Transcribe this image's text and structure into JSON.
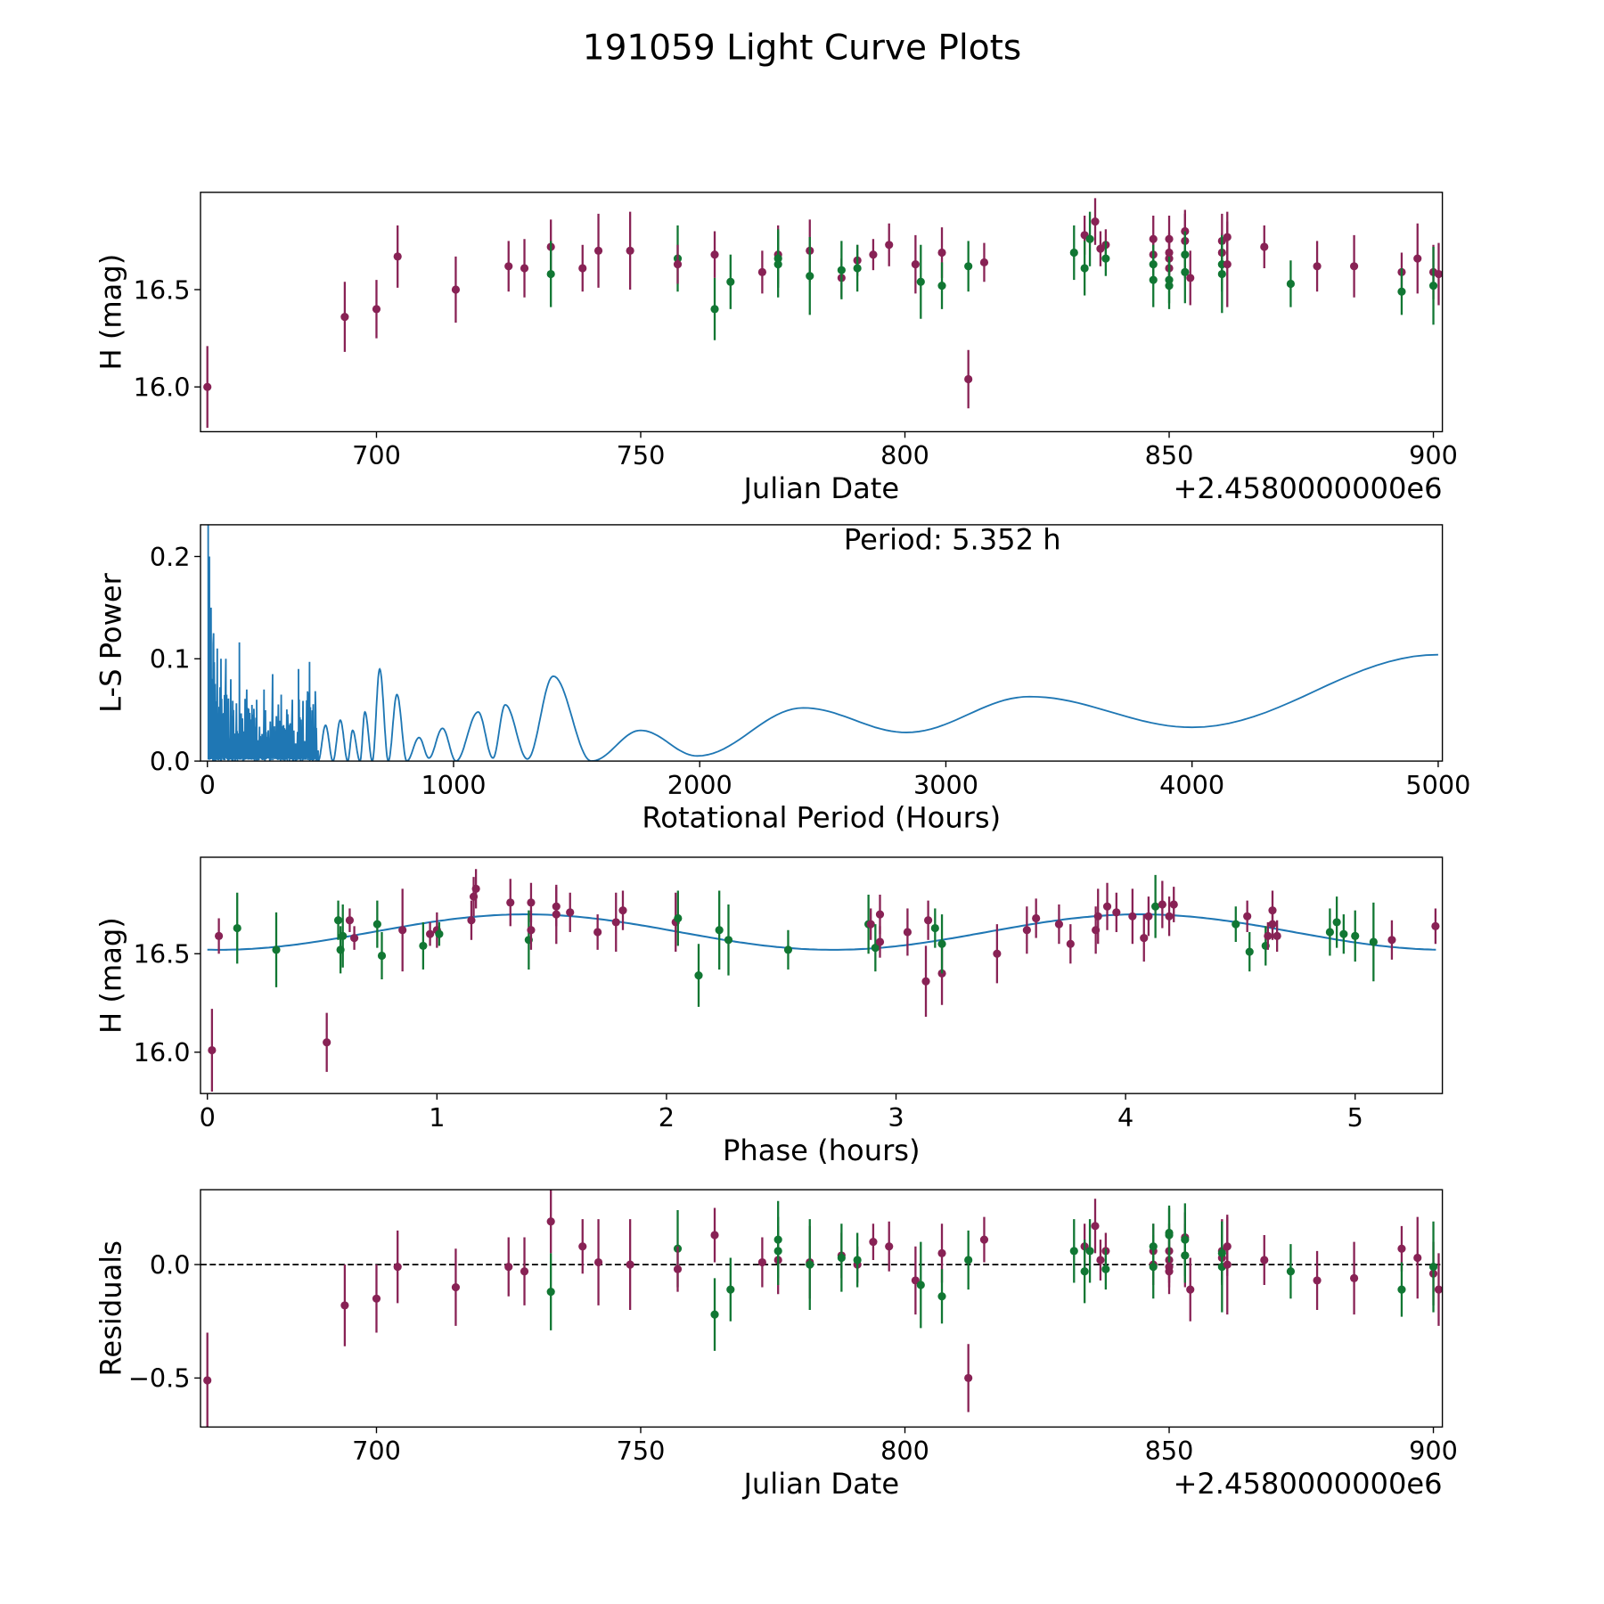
{
  "title": "191059 Light Curve Plots",
  "colors": {
    "maroon": "#882255",
    "green": "#117733",
    "line": "#1f77b4"
  },
  "chart_data": [
    {
      "type": "scatter",
      "name": "light-curve",
      "xlabel": "Julian Date",
      "ylabel": "H (mag)",
      "offset_label": "+2.4580000000e6",
      "xlim": [
        666.7,
        901.7
      ],
      "ylim": [
        15.77,
        17.0
      ],
      "xticks": [
        700,
        750,
        800,
        850,
        900
      ],
      "xtick_labels": [
        "700",
        "750",
        "800",
        "850",
        "900"
      ],
      "yticks": [
        16.0,
        16.5
      ],
      "ytick_labels": [
        "16.0",
        "16.5"
      ],
      "point_fields": [
        "jd_offset",
        "H",
        "err",
        "color",
        "residual"
      ],
      "points": [
        [
          668,
          16.0,
          0.21,
          "m",
          -0.51
        ],
        [
          694,
          16.36,
          0.18,
          "m",
          -0.18
        ],
        [
          700,
          16.4,
          0.15,
          "m",
          -0.15
        ],
        [
          704,
          16.67,
          0.16,
          "m",
          -0.01
        ],
        [
          715,
          16.5,
          0.17,
          "m",
          -0.1
        ],
        [
          725,
          16.62,
          0.13,
          "m",
          -0.01
        ],
        [
          728,
          16.61,
          0.15,
          "m",
          -0.03
        ],
        [
          733,
          16.72,
          0.14,
          "m",
          0.19
        ],
        [
          733,
          16.58,
          0.17,
          "g",
          -0.12
        ],
        [
          739,
          16.61,
          0.12,
          "m",
          0.08
        ],
        [
          742,
          16.7,
          0.19,
          "m",
          0.01
        ],
        [
          748,
          16.7,
          0.2,
          "m",
          0.0
        ],
        [
          757,
          16.66,
          0.17,
          "g",
          0.07
        ],
        [
          757,
          16.63,
          0.1,
          "m",
          -0.02
        ],
        [
          764,
          16.68,
          0.12,
          "m",
          0.13
        ],
        [
          764,
          16.4,
          0.16,
          "g",
          -0.22
        ],
        [
          767,
          16.54,
          0.14,
          "g",
          -0.11
        ],
        [
          773,
          16.59,
          0.11,
          "m",
          0.01
        ],
        [
          776,
          16.68,
          0.15,
          "m",
          0.02
        ],
        [
          776,
          16.66,
          0.15,
          "g",
          0.06
        ],
        [
          776,
          16.63,
          0.17,
          "g",
          0.11
        ],
        [
          782,
          16.7,
          0.16,
          "m",
          0.01
        ],
        [
          782,
          16.57,
          0.2,
          "g",
          0.0
        ],
        [
          788,
          16.56,
          0.1,
          "m",
          0.04
        ],
        [
          788,
          16.6,
          0.15,
          "g",
          0.03
        ],
        [
          791,
          16.65,
          0.08,
          "m",
          0.0
        ],
        [
          791,
          16.61,
          0.12,
          "g",
          0.02
        ],
        [
          794,
          16.68,
          0.08,
          "m",
          0.1
        ],
        [
          797,
          16.73,
          0.11,
          "m",
          0.08
        ],
        [
          802,
          16.63,
          0.15,
          "m",
          -0.07
        ],
        [
          803,
          16.54,
          0.19,
          "g",
          -0.09
        ],
        [
          807,
          16.69,
          0.13,
          "m",
          0.05
        ],
        [
          807,
          16.52,
          0.12,
          "g",
          -0.14
        ],
        [
          812,
          16.62,
          0.13,
          "g",
          0.02
        ],
        [
          812,
          16.04,
          0.15,
          "m",
          -0.5
        ],
        [
          815,
          16.64,
          0.1,
          "m",
          0.11
        ],
        [
          832,
          16.69,
          0.14,
          "g",
          0.06
        ],
        [
          834,
          16.78,
          0.1,
          "m",
          0.08
        ],
        [
          834,
          16.61,
          0.14,
          "g",
          -0.03
        ],
        [
          835,
          16.76,
          0.14,
          "g",
          0.06
        ],
        [
          836,
          16.85,
          0.12,
          "m",
          0.17
        ],
        [
          837,
          16.71,
          0.09,
          "m",
          0.02
        ],
        [
          838,
          16.73,
          0.08,
          "m",
          0.06
        ],
        [
          838,
          16.66,
          0.09,
          "g",
          -0.02
        ],
        [
          847,
          16.76,
          0.12,
          "m",
          0.06
        ],
        [
          847,
          16.68,
          0.09,
          "m",
          0.0
        ],
        [
          847,
          16.63,
          0.1,
          "g",
          0.08
        ],
        [
          847,
          16.55,
          0.14,
          "g",
          -0.01
        ],
        [
          850,
          16.76,
          0.12,
          "m",
          0.06
        ],
        [
          850,
          16.69,
          0.1,
          "m",
          0.02
        ],
        [
          850,
          16.66,
          0.09,
          "m",
          -0.01
        ],
        [
          850,
          16.61,
          0.1,
          "m",
          -0.03
        ],
        [
          850,
          16.55,
          0.12,
          "g",
          0.14
        ],
        [
          850,
          16.52,
          0.12,
          "g",
          0.13
        ],
        [
          853,
          16.8,
          0.11,
          "m",
          0.12
        ],
        [
          853,
          16.75,
          0.14,
          "m",
          0.04
        ],
        [
          853,
          16.68,
          0.12,
          "g",
          0.04
        ],
        [
          853,
          16.59,
          0.16,
          "g",
          0.11
        ],
        [
          854,
          16.56,
          0.14,
          "m",
          -0.11
        ],
        [
          860,
          16.75,
          0.14,
          "m",
          0.06
        ],
        [
          860,
          16.69,
          0.1,
          "m",
          0.03
        ],
        [
          860,
          16.63,
          0.14,
          "g",
          0.05
        ],
        [
          860,
          16.58,
          0.2,
          "g",
          -0.01
        ],
        [
          861,
          16.77,
          0.13,
          "m",
          0.08
        ],
        [
          861,
          16.63,
          0.22,
          "m",
          0.0
        ],
        [
          868,
          16.72,
          0.11,
          "m",
          0.02
        ],
        [
          873,
          16.53,
          0.12,
          "g",
          -0.03
        ],
        [
          878,
          16.62,
          0.13,
          "m",
          -0.07
        ],
        [
          885,
          16.62,
          0.16,
          "m",
          -0.06
        ],
        [
          894,
          16.59,
          0.1,
          "m",
          0.07
        ],
        [
          894,
          16.49,
          0.12,
          "g",
          -0.11
        ],
        [
          897,
          16.66,
          0.18,
          "m",
          0.03
        ],
        [
          900,
          16.59,
          0.14,
          "m",
          -0.04
        ],
        [
          900,
          16.52,
          0.2,
          "g",
          -0.01
        ],
        [
          901,
          16.58,
          0.16,
          "m",
          -0.11
        ]
      ]
    },
    {
      "type": "line",
      "name": "periodogram",
      "xlabel": "Rotational Period (Hours)",
      "ylabel": "L-S Power",
      "annotation": "Period: 5.352 h",
      "xlim": [
        -28,
        5017
      ],
      "ylim": [
        0,
        0.231
      ],
      "xticks": [
        0,
        1000,
        2000,
        3000,
        4000,
        5000
      ],
      "xtick_labels": [
        "0",
        "1000",
        "2000",
        "3000",
        "4000",
        "5000"
      ],
      "yticks": [
        0.0,
        0.1,
        0.2
      ],
      "ytick_labels": [
        "0.0",
        "0.1",
        "0.2"
      ],
      "spike_peaks": [
        [
          3,
          0.23
        ],
        [
          8,
          0.2
        ],
        [
          15,
          0.15
        ],
        [
          25,
          0.125
        ],
        [
          40,
          0.11
        ],
        [
          55,
          0.1
        ],
        [
          75,
          0.1
        ],
        [
          95,
          0.08
        ],
        [
          130,
          0.116
        ],
        [
          160,
          0.07
        ],
        [
          200,
          0.06
        ],
        [
          230,
          0.07
        ],
        [
          265,
          0.085
        ],
        [
          300,
          0.065
        ],
        [
          345,
          0.06
        ],
        [
          370,
          0.09
        ],
        [
          415,
          0.097
        ],
        [
          440,
          0.05
        ]
      ],
      "smooth_points": [
        [
          450,
          0.0
        ],
        [
          480,
          0.035
        ],
        [
          510,
          0.0
        ],
        [
          540,
          0.04
        ],
        [
          570,
          0.0
        ],
        [
          590,
          0.03
        ],
        [
          620,
          0.0
        ],
        [
          640,
          0.048
        ],
        [
          670,
          0.0
        ],
        [
          700,
          0.09
        ],
        [
          735,
          0.0
        ],
        [
          770,
          0.065
        ],
        [
          810,
          0.0
        ],
        [
          860,
          0.023
        ],
        [
          900,
          0.003
        ],
        [
          955,
          0.032
        ],
        [
          1010,
          0.0
        ],
        [
          1100,
          0.048
        ],
        [
          1160,
          0.003
        ],
        [
          1210,
          0.055
        ],
        [
          1300,
          0.002
        ],
        [
          1405,
          0.083
        ],
        [
          1560,
          0.0
        ],
        [
          1760,
          0.03
        ],
        [
          1990,
          0.005
        ],
        [
          2420,
          0.052
        ],
        [
          2840,
          0.028
        ],
        [
          3340,
          0.063
        ],
        [
          4000,
          0.033
        ],
        [
          5000,
          0.104
        ]
      ]
    },
    {
      "type": "scatter",
      "name": "phased-curve",
      "xlabel": "Phase (hours)",
      "ylabel": "H (mag)",
      "xlim": [
        -0.03,
        5.38
      ],
      "ylim": [
        15.79,
        16.99
      ],
      "xticks": [
        0,
        1,
        2,
        3,
        4,
        5
      ],
      "xtick_labels": [
        "0",
        "1",
        "2",
        "3",
        "4",
        "5"
      ],
      "yticks": [
        16.0,
        16.5
      ],
      "ytick_labels": [
        "16.0",
        "16.5"
      ],
      "model": {
        "mean": 16.61,
        "amplitude": 0.09,
        "half_period": 2.676,
        "phase_shift": 0.05,
        "x_range": [
          0,
          5.352
        ]
      },
      "point_fields": [
        "phase",
        "H",
        "err",
        "color"
      ],
      "points": [
        [
          0.02,
          16.01,
          0.21,
          "m"
        ],
        [
          0.05,
          16.59,
          0.09,
          "m"
        ],
        [
          0.13,
          16.63,
          0.18,
          "g"
        ],
        [
          0.3,
          16.52,
          0.19,
          "g"
        ],
        [
          0.52,
          16.05,
          0.15,
          "m"
        ],
        [
          0.57,
          16.67,
          0.1,
          "g"
        ],
        [
          0.58,
          16.52,
          0.12,
          "g"
        ],
        [
          0.59,
          16.59,
          0.16,
          "g"
        ],
        [
          0.62,
          16.67,
          0.06,
          "m"
        ],
        [
          0.64,
          16.58,
          0.06,
          "m"
        ],
        [
          0.74,
          16.65,
          0.12,
          "g"
        ],
        [
          0.76,
          16.49,
          0.12,
          "g"
        ],
        [
          0.85,
          16.62,
          0.21,
          "m"
        ],
        [
          0.94,
          16.54,
          0.12,
          "g"
        ],
        [
          0.97,
          16.6,
          0.06,
          "m"
        ],
        [
          1.0,
          16.62,
          0.09,
          "m"
        ],
        [
          1.01,
          16.6,
          0.06,
          "g"
        ],
        [
          1.15,
          16.67,
          0.1,
          "m"
        ],
        [
          1.16,
          16.79,
          0.1,
          "m"
        ],
        [
          1.17,
          16.83,
          0.1,
          "m"
        ],
        [
          1.32,
          16.76,
          0.12,
          "m"
        ],
        [
          1.4,
          16.57,
          0.15,
          "g"
        ],
        [
          1.41,
          16.76,
          0.1,
          "m"
        ],
        [
          1.41,
          16.62,
          0.1,
          "m"
        ],
        [
          1.52,
          16.7,
          0.15,
          "m"
        ],
        [
          1.52,
          16.74,
          0.1,
          "m"
        ],
        [
          1.58,
          16.71,
          0.1,
          "m"
        ],
        [
          1.7,
          16.61,
          0.09,
          "m"
        ],
        [
          1.78,
          16.66,
          0.15,
          "m"
        ],
        [
          1.81,
          16.72,
          0.1,
          "m"
        ],
        [
          2.04,
          16.66,
          0.15,
          "m"
        ],
        [
          2.05,
          16.68,
          0.14,
          "g"
        ],
        [
          2.14,
          16.39,
          0.16,
          "g"
        ],
        [
          2.23,
          16.62,
          0.2,
          "g"
        ],
        [
          2.27,
          16.57,
          0.18,
          "g"
        ],
        [
          2.53,
          16.52,
          0.1,
          "g"
        ],
        [
          2.88,
          16.65,
          0.15,
          "g"
        ],
        [
          2.89,
          16.65,
          0.08,
          "m"
        ],
        [
          2.91,
          16.53,
          0.12,
          "g"
        ],
        [
          2.93,
          16.7,
          0.1,
          "m"
        ],
        [
          2.93,
          16.56,
          0.08,
          "m"
        ],
        [
          3.05,
          16.61,
          0.12,
          "m"
        ],
        [
          3.13,
          16.36,
          0.18,
          "m"
        ],
        [
          3.14,
          16.67,
          0.1,
          "m"
        ],
        [
          3.17,
          16.63,
          0.1,
          "g"
        ],
        [
          3.2,
          16.4,
          0.16,
          "m"
        ],
        [
          3.2,
          16.55,
          0.15,
          "g"
        ],
        [
          3.44,
          16.5,
          0.15,
          "m"
        ],
        [
          3.57,
          16.62,
          0.12,
          "m"
        ],
        [
          3.61,
          16.68,
          0.1,
          "m"
        ],
        [
          3.71,
          16.65,
          0.1,
          "m"
        ],
        [
          3.76,
          16.55,
          0.1,
          "m"
        ],
        [
          3.87,
          16.62,
          0.12,
          "m"
        ],
        [
          3.88,
          16.69,
          0.14,
          "m"
        ],
        [
          3.92,
          16.74,
          0.12,
          "m"
        ],
        [
          3.96,
          16.71,
          0.1,
          "m"
        ],
        [
          4.03,
          16.69,
          0.14,
          "m"
        ],
        [
          4.08,
          16.58,
          0.12,
          "m"
        ],
        [
          4.1,
          16.69,
          0.1,
          "m"
        ],
        [
          4.13,
          16.74,
          0.16,
          "g"
        ],
        [
          4.16,
          16.75,
          0.12,
          "m"
        ],
        [
          4.19,
          16.69,
          0.1,
          "m"
        ],
        [
          4.21,
          16.75,
          0.09,
          "m"
        ],
        [
          4.48,
          16.65,
          0.09,
          "g"
        ],
        [
          4.53,
          16.69,
          0.08,
          "m"
        ],
        [
          4.54,
          16.51,
          0.1,
          "g"
        ],
        [
          4.61,
          16.54,
          0.1,
          "g"
        ],
        [
          4.62,
          16.59,
          0.07,
          "m"
        ],
        [
          4.64,
          16.65,
          0.08,
          "m"
        ],
        [
          4.64,
          16.72,
          0.1,
          "m"
        ],
        [
          4.66,
          16.59,
          0.08,
          "m"
        ],
        [
          4.89,
          16.61,
          0.12,
          "g"
        ],
        [
          4.92,
          16.66,
          0.13,
          "g"
        ],
        [
          4.95,
          16.6,
          0.1,
          "g"
        ],
        [
          5.0,
          16.59,
          0.13,
          "g"
        ],
        [
          5.08,
          16.56,
          0.2,
          "g"
        ],
        [
          5.16,
          16.57,
          0.1,
          "m"
        ],
        [
          5.35,
          16.64,
          0.09,
          "m"
        ]
      ]
    },
    {
      "type": "scatter",
      "name": "residuals",
      "xlabel": "Julian Date",
      "ylabel": "Residuals",
      "offset_label": "+2.4580000000e6",
      "xlim": [
        666.7,
        901.7
      ],
      "ylim": [
        -0.716,
        0.33
      ],
      "xticks": [
        700,
        750,
        800,
        850,
        900
      ],
      "xtick_labels": [
        "700",
        "750",
        "800",
        "850",
        "900"
      ],
      "yticks": [
        -0.5,
        0.0
      ],
      "ytick_labels": [
        "−0.5",
        "0.0"
      ],
      "zero_line": true
    }
  ]
}
